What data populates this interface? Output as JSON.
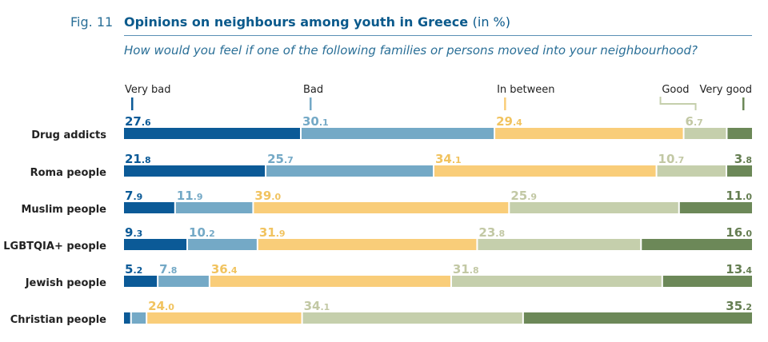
{
  "figure": {
    "label": "Fig. 11",
    "title": "Opinions on neighbours among youth in Greece",
    "title_unit": "(in %)",
    "subtitle": "How would you feel if one of the following families or persons moved into your neighbourhood?"
  },
  "chart_data": {
    "type": "bar",
    "stacked": true,
    "orientation": "horizontal",
    "xlim": [
      0,
      100
    ],
    "categories": [
      "Drug addicts",
      "Roma people",
      "Muslim people",
      "LGBTQIA+ people",
      "Jewish people",
      "Christian people"
    ],
    "series": [
      {
        "name": "Very bad",
        "color": "#0b5a97",
        "values": [
          27.6,
          21.8,
          7.9,
          9.3,
          5.2,
          1.2
        ],
        "labels": [
          "27.6",
          "21.8",
          "7.9",
          "9.3",
          "5.2",
          ""
        ]
      },
      {
        "name": "Bad",
        "color": "#74a9c6",
        "values": [
          30.1,
          25.7,
          11.9,
          10.2,
          7.8,
          2.4
        ],
        "labels": [
          "30.1",
          "25.7",
          "11.9",
          "10.2",
          "7.8",
          ""
        ]
      },
      {
        "name": "In between",
        "color": "#f9cd79",
        "values": [
          29.4,
          34.1,
          39.0,
          31.9,
          36.4,
          24.0
        ],
        "labels": [
          "29.4",
          "34.1",
          "39.0",
          "31.9",
          "36.4",
          "24.0"
        ]
      },
      {
        "name": "Good",
        "color": "#c5cfac",
        "values": [
          6.7,
          10.7,
          25.9,
          23.8,
          31.8,
          34.1
        ],
        "labels": [
          "6.7",
          "10.7",
          "25.9",
          "23.8",
          "31.8",
          "34.1"
        ]
      },
      {
        "name": "Very good",
        "color": "#6c8858",
        "values": [
          3.8,
          3.8,
          11.0,
          16.0,
          13.4,
          35.2
        ],
        "labels": [
          "",
          "3.8",
          "11.0",
          "16.0",
          "13.4",
          "35.2"
        ]
      }
    ],
    "label_colors": [
      "#0b5a97",
      "#74a9c6",
      "#f1c35f",
      "#c2c8a4",
      "#657e52"
    ],
    "legend": "top"
  }
}
